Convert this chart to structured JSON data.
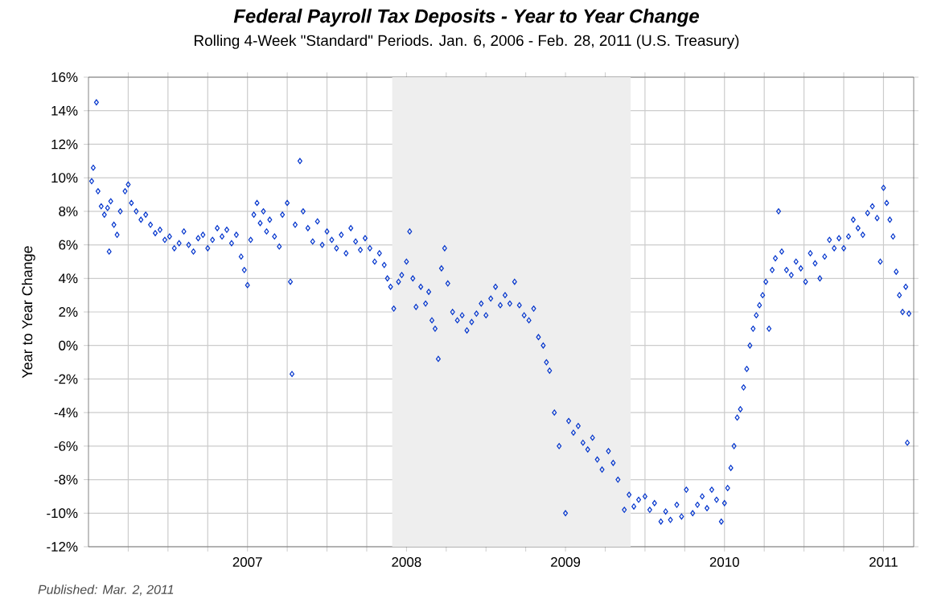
{
  "chart_data": {
    "type": "scatter",
    "title": "Federal Payroll Tax Deposits - Year to Year Change",
    "subtitle": "Rolling 4-Week \"Standard\" Periods. Jan. 6, 2006 - Feb. 28, 2011  (U.S. Treasury)",
    "ylabel": "Year to Year Change",
    "annotations": [
      "Published: Mar. 2, 2011"
    ],
    "xlim": [
      2006.0,
      2011.19
    ],
    "xticks": [
      {
        "value": 2006.25,
        "label": null
      },
      {
        "value": 2006.5,
        "label": null
      },
      {
        "value": 2006.75,
        "label": null
      },
      2007,
      {
        "value": 2007.25,
        "label": null
      },
      {
        "value": 2007.5,
        "label": null
      },
      {
        "value": 2007.75,
        "label": null
      },
      2008,
      {
        "value": 2008.25,
        "label": null
      },
      {
        "value": 2008.5,
        "label": null
      },
      {
        "value": 2008.75,
        "label": null
      },
      2009,
      {
        "value": 2009.25,
        "label": null
      },
      {
        "value": 2009.5,
        "label": null
      },
      {
        "value": 2009.75,
        "label": null
      },
      2010,
      {
        "value": 2010.25,
        "label": null
      },
      {
        "value": 2010.5,
        "label": null
      },
      {
        "value": 2010.75,
        "label": null
      },
      2011
    ],
    "ylim": [
      -12,
      16
    ],
    "yticks": [
      {
        "value": -12,
        "label": "-12%"
      },
      {
        "value": -10,
        "label": "-10%"
      },
      {
        "value": -8,
        "label": "-8%"
      },
      {
        "value": -6,
        "label": "-6%"
      },
      {
        "value": -4,
        "label": "-4%"
      },
      {
        "value": -2,
        "label": "-2%"
      },
      {
        "value": 0,
        "label": "0%"
      },
      {
        "value": 2,
        "label": "2%"
      },
      {
        "value": 4,
        "label": "4%"
      },
      {
        "value": 6,
        "label": "6%"
      },
      {
        "value": 8,
        "label": "8%"
      },
      {
        "value": 10,
        "label": "10%"
      },
      {
        "value": 12,
        "label": "12%"
      },
      {
        "value": 14,
        "label": "14%"
      },
      {
        "value": 16,
        "label": "16%"
      }
    ],
    "grid": true,
    "marker": "diamond",
    "bands": [
      {
        "axis": "x",
        "from": 2007.91,
        "to": 2009.41,
        "color": "#eeeeee"
      }
    ],
    "series": [
      {
        "color": "#0033cc",
        "x": [
          2006.02,
          2006.03,
          2006.05,
          2006.06,
          2006.08,
          2006.1,
          2006.12,
          2006.13,
          2006.14,
          2006.16,
          2006.18,
          2006.2,
          2006.23,
          2006.25,
          2006.27,
          2006.3,
          2006.33,
          2006.36,
          2006.39,
          2006.42,
          2006.45,
          2006.48,
          2006.51,
          2006.54,
          2006.57,
          2006.6,
          2006.63,
          2006.66,
          2006.69,
          2006.72,
          2006.75,
          2006.78,
          2006.81,
          2006.84,
          2006.87,
          2006.9,
          2006.93,
          2006.96,
          2006.98,
          2007.0,
          2007.02,
          2007.04,
          2007.06,
          2007.08,
          2007.1,
          2007.12,
          2007.14,
          2007.17,
          2007.2,
          2007.22,
          2007.25,
          2007.27,
          2007.28,
          2007.3,
          2007.33,
          2007.35,
          2007.38,
          2007.41,
          2007.44,
          2007.47,
          2007.5,
          2007.53,
          2007.56,
          2007.59,
          2007.62,
          2007.65,
          2007.68,
          2007.71,
          2007.74,
          2007.77,
          2007.8,
          2007.83,
          2007.86,
          2007.88,
          2007.9,
          2007.92,
          2007.95,
          2007.97,
          2008.0,
          2008.02,
          2008.04,
          2008.06,
          2008.09,
          2008.12,
          2008.14,
          2008.16,
          2008.18,
          2008.2,
          2008.22,
          2008.24,
          2008.26,
          2008.29,
          2008.32,
          2008.35,
          2008.38,
          2008.41,
          2008.44,
          2008.47,
          2008.5,
          2008.53,
          2008.56,
          2008.59,
          2008.62,
          2008.65,
          2008.68,
          2008.71,
          2008.74,
          2008.77,
          2008.8,
          2008.83,
          2008.86,
          2008.88,
          2008.9,
          2008.93,
          2008.96,
          2009.0,
          2009.02,
          2009.05,
          2009.08,
          2009.11,
          2009.14,
          2009.17,
          2009.2,
          2009.23,
          2009.27,
          2009.3,
          2009.33,
          2009.37,
          2009.4,
          2009.43,
          2009.46,
          2009.5,
          2009.53,
          2009.56,
          2009.6,
          2009.63,
          2009.66,
          2009.7,
          2009.73,
          2009.76,
          2009.8,
          2009.83,
          2009.86,
          2009.89,
          2009.92,
          2009.95,
          2009.98,
          2010.0,
          2010.02,
          2010.04,
          2010.06,
          2010.08,
          2010.1,
          2010.12,
          2010.14,
          2010.16,
          2010.18,
          2010.2,
          2010.22,
          2010.24,
          2010.26,
          2010.28,
          2010.3,
          2010.32,
          2010.34,
          2010.36,
          2010.39,
          2010.42,
          2010.45,
          2010.48,
          2010.51,
          2010.54,
          2010.57,
          2010.6,
          2010.63,
          2010.66,
          2010.69,
          2010.72,
          2010.75,
          2010.78,
          2010.81,
          2010.84,
          2010.87,
          2010.9,
          2010.93,
          2010.96,
          2010.98,
          2011.0,
          2011.02,
          2011.04,
          2011.06,
          2011.08,
          2011.1,
          2011.12,
          2011.14,
          2011.15,
          2011.16
        ],
        "values": [
          9.8,
          10.6,
          14.5,
          9.2,
          8.3,
          7.8,
          8.2,
          5.6,
          8.6,
          7.2,
          6.6,
          8.0,
          9.2,
          9.6,
          8.5,
          8.0,
          7.5,
          7.8,
          7.2,
          6.7,
          6.9,
          6.3,
          6.5,
          5.8,
          6.1,
          6.8,
          6.0,
          5.6,
          6.4,
          6.6,
          5.8,
          6.3,
          7.0,
          6.5,
          6.9,
          6.1,
          6.6,
          5.3,
          4.5,
          3.6,
          6.3,
          7.8,
          8.5,
          7.3,
          8.0,
          6.8,
          7.5,
          6.5,
          5.9,
          7.8,
          8.5,
          3.8,
          -1.7,
          7.2,
          11.0,
          8.0,
          7.0,
          6.2,
          7.4,
          6.0,
          6.8,
          6.3,
          5.8,
          6.6,
          5.5,
          7.0,
          6.2,
          5.7,
          6.4,
          5.8,
          5.0,
          5.5,
          4.8,
          4.0,
          3.5,
          2.2,
          3.8,
          4.2,
          5.0,
          6.8,
          4.0,
          2.3,
          3.5,
          2.5,
          3.2,
          1.5,
          1.0,
          -0.8,
          4.6,
          5.8,
          3.7,
          2.0,
          1.5,
          1.8,
          0.9,
          1.4,
          1.9,
          2.5,
          1.8,
          2.8,
          3.5,
          2.4,
          3.0,
          2.5,
          3.8,
          2.4,
          1.8,
          1.5,
          2.2,
          0.5,
          0.0,
          -1.0,
          -1.5,
          -4.0,
          -6.0,
          -10.0,
          -4.5,
          -5.2,
          -4.8,
          -5.8,
          -6.2,
          -5.5,
          -6.8,
          -7.4,
          -6.3,
          -7.0,
          -8.0,
          -9.8,
          -8.9,
          -9.6,
          -9.2,
          -9.0,
          -9.8,
          -9.4,
          -10.5,
          -9.9,
          -10.4,
          -9.5,
          -10.2,
          -8.6,
          -10.0,
          -9.5,
          -9.0,
          -9.7,
          -8.6,
          -9.2,
          -10.5,
          -9.4,
          -8.5,
          -7.3,
          -6.0,
          -4.3,
          -3.8,
          -2.5,
          -1.4,
          0.0,
          1.0,
          1.8,
          2.4,
          3.0,
          3.8,
          1.0,
          4.5,
          5.2,
          8.0,
          5.6,
          4.5,
          4.2,
          5.0,
          4.6,
          3.8,
          5.5,
          4.9,
          4.0,
          5.3,
          6.3,
          5.8,
          6.4,
          5.8,
          6.5,
          7.5,
          7.0,
          6.6,
          7.9,
          8.3,
          7.6,
          5.0,
          9.4,
          8.5,
          7.5,
          6.5,
          4.4,
          3.0,
          2.0,
          3.5,
          -5.8,
          1.9
        ]
      }
    ]
  }
}
